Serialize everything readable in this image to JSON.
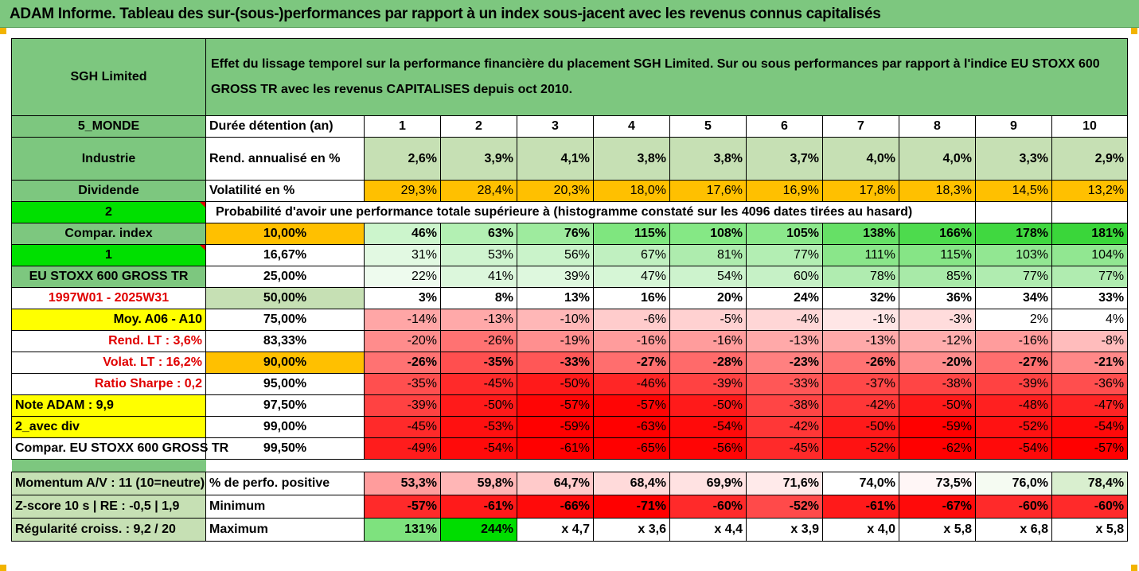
{
  "header_bar": {
    "title": "ADAM Informe. Tableau des sur-(sous-)performances par rapport à un index sous-jacent avec les revenus connus capitalisés"
  },
  "company": "SGH Limited",
  "description": "Effet du lissage temporel sur la performance financière du placement SGH Limited. Sur ou sous performances par rapport à l'indice EU STOXX 600 GROSS TR avec les revenus CAPITALISES depuis oct 2010.",
  "side": {
    "zone": "5_MONDE",
    "sector": "Industrie",
    "dividend": "Dividende",
    "choice2": "2",
    "compar_index": "Compar. index",
    "choice1": "1",
    "index_name": "EU STOXX 600 GROSS TR",
    "period": "1997W01 - 2025W31",
    "moy": "Moy. A06 - A10",
    "rend_lt": "Rend. LT :   3,6%",
    "volat_lt": "Volat. LT :   16,2%",
    "sharpe": "Ratio Sharpe :   0,2",
    "note": "Note ADAM : 9,9",
    "avec_div": "2_avec div",
    "compar_bottom": "Compar. EU STOXX 600 GROSS TR",
    "momentum": "Momentum A/V : 11 (10=neutre)",
    "zscore": "Z-score 10 s  |  RE : -0,5  |  1,9",
    "regularite": "Régularité croiss. : 9,2 / 20"
  },
  "labels": {
    "duree": "Durée détention (an)",
    "rend": "Rend. annualisé en %",
    "vol": "Volatilité en %",
    "proba": "Probabilité d'avoir une performance totale supérieure à (histogramme constaté sur les 4096 dates tirées au hasard)",
    "perf_pos": "% de perfo. positive",
    "minimum": "Minimum",
    "maximum": "Maximum"
  },
  "years": [
    "1",
    "2",
    "3",
    "4",
    "5",
    "6",
    "7",
    "8",
    "9",
    "10"
  ],
  "rend": [
    "2,6%",
    "3,9%",
    "4,1%",
    "3,8%",
    "3,8%",
    "3,7%",
    "4,0%",
    "4,0%",
    "3,3%",
    "2,9%"
  ],
  "vol": [
    "29,3%",
    "28,4%",
    "20,3%",
    "18,0%",
    "17,6%",
    "16,9%",
    "17,8%",
    "18,3%",
    "14,5%",
    "13,2%"
  ],
  "prob_rows": [
    {
      "p": "10,00%",
      "v": [
        "46%",
        "63%",
        "76%",
        "115%",
        "108%",
        "105%",
        "138%",
        "166%",
        "178%",
        "181%"
      ]
    },
    {
      "p": "16,67%",
      "v": [
        "31%",
        "53%",
        "56%",
        "67%",
        "81%",
        "77%",
        "111%",
        "115%",
        "103%",
        "104%"
      ]
    },
    {
      "p": "25,00%",
      "v": [
        "22%",
        "41%",
        "39%",
        "47%",
        "54%",
        "60%",
        "78%",
        "85%",
        "77%",
        "77%"
      ]
    },
    {
      "p": "50,00%",
      "v": [
        "3%",
        "8%",
        "13%",
        "16%",
        "20%",
        "24%",
        "32%",
        "36%",
        "34%",
        "33%"
      ]
    },
    {
      "p": "75,00%",
      "v": [
        "-14%",
        "-13%",
        "-10%",
        "-6%",
        "-5%",
        "-4%",
        "-1%",
        "-3%",
        "2%",
        "4%"
      ]
    },
    {
      "p": "83,33%",
      "v": [
        "-20%",
        "-26%",
        "-19%",
        "-16%",
        "-16%",
        "-13%",
        "-13%",
        "-12%",
        "-16%",
        "-8%"
      ]
    },
    {
      "p": "90,00%",
      "v": [
        "-26%",
        "-35%",
        "-33%",
        "-27%",
        "-28%",
        "-23%",
        "-26%",
        "-20%",
        "-27%",
        "-21%"
      ]
    },
    {
      "p": "95,00%",
      "v": [
        "-35%",
        "-45%",
        "-50%",
        "-46%",
        "-39%",
        "-33%",
        "-37%",
        "-38%",
        "-39%",
        "-36%"
      ]
    },
    {
      "p": "97,50%",
      "v": [
        "-39%",
        "-50%",
        "-57%",
        "-57%",
        "-50%",
        "-38%",
        "-42%",
        "-50%",
        "-48%",
        "-47%"
      ]
    },
    {
      "p": "99,00%",
      "v": [
        "-45%",
        "-53%",
        "-59%",
        "-63%",
        "-54%",
        "-42%",
        "-50%",
        "-59%",
        "-52%",
        "-54%"
      ]
    },
    {
      "p": "99,50%",
      "v": [
        "-49%",
        "-54%",
        "-61%",
        "-65%",
        "-56%",
        "-45%",
        "-52%",
        "-62%",
        "-54%",
        "-57%"
      ]
    }
  ],
  "perf_pos": [
    "53,3%",
    "59,8%",
    "64,7%",
    "68,4%",
    "69,9%",
    "71,6%",
    "74,0%",
    "73,5%",
    "76,0%",
    "78,4%"
  ],
  "minimum": [
    "-57%",
    "-61%",
    "-66%",
    "-71%",
    "-60%",
    "-52%",
    "-61%",
    "-67%",
    "-60%",
    "-60%"
  ],
  "maximum": [
    "131%",
    "244%",
    "x 4,7",
    "x 3,6",
    "x 4,4",
    "x 3,9",
    "x 4,0",
    "x 5,8",
    "x 6,8",
    "x 5,8"
  ],
  "colors": {
    "header_green": "#7dc77f",
    "light_green": "#c6e0b4",
    "bright_green": "#00e000",
    "orange": "#ffc000",
    "yellow": "#ffff00",
    "red_text": "#e00000"
  }
}
